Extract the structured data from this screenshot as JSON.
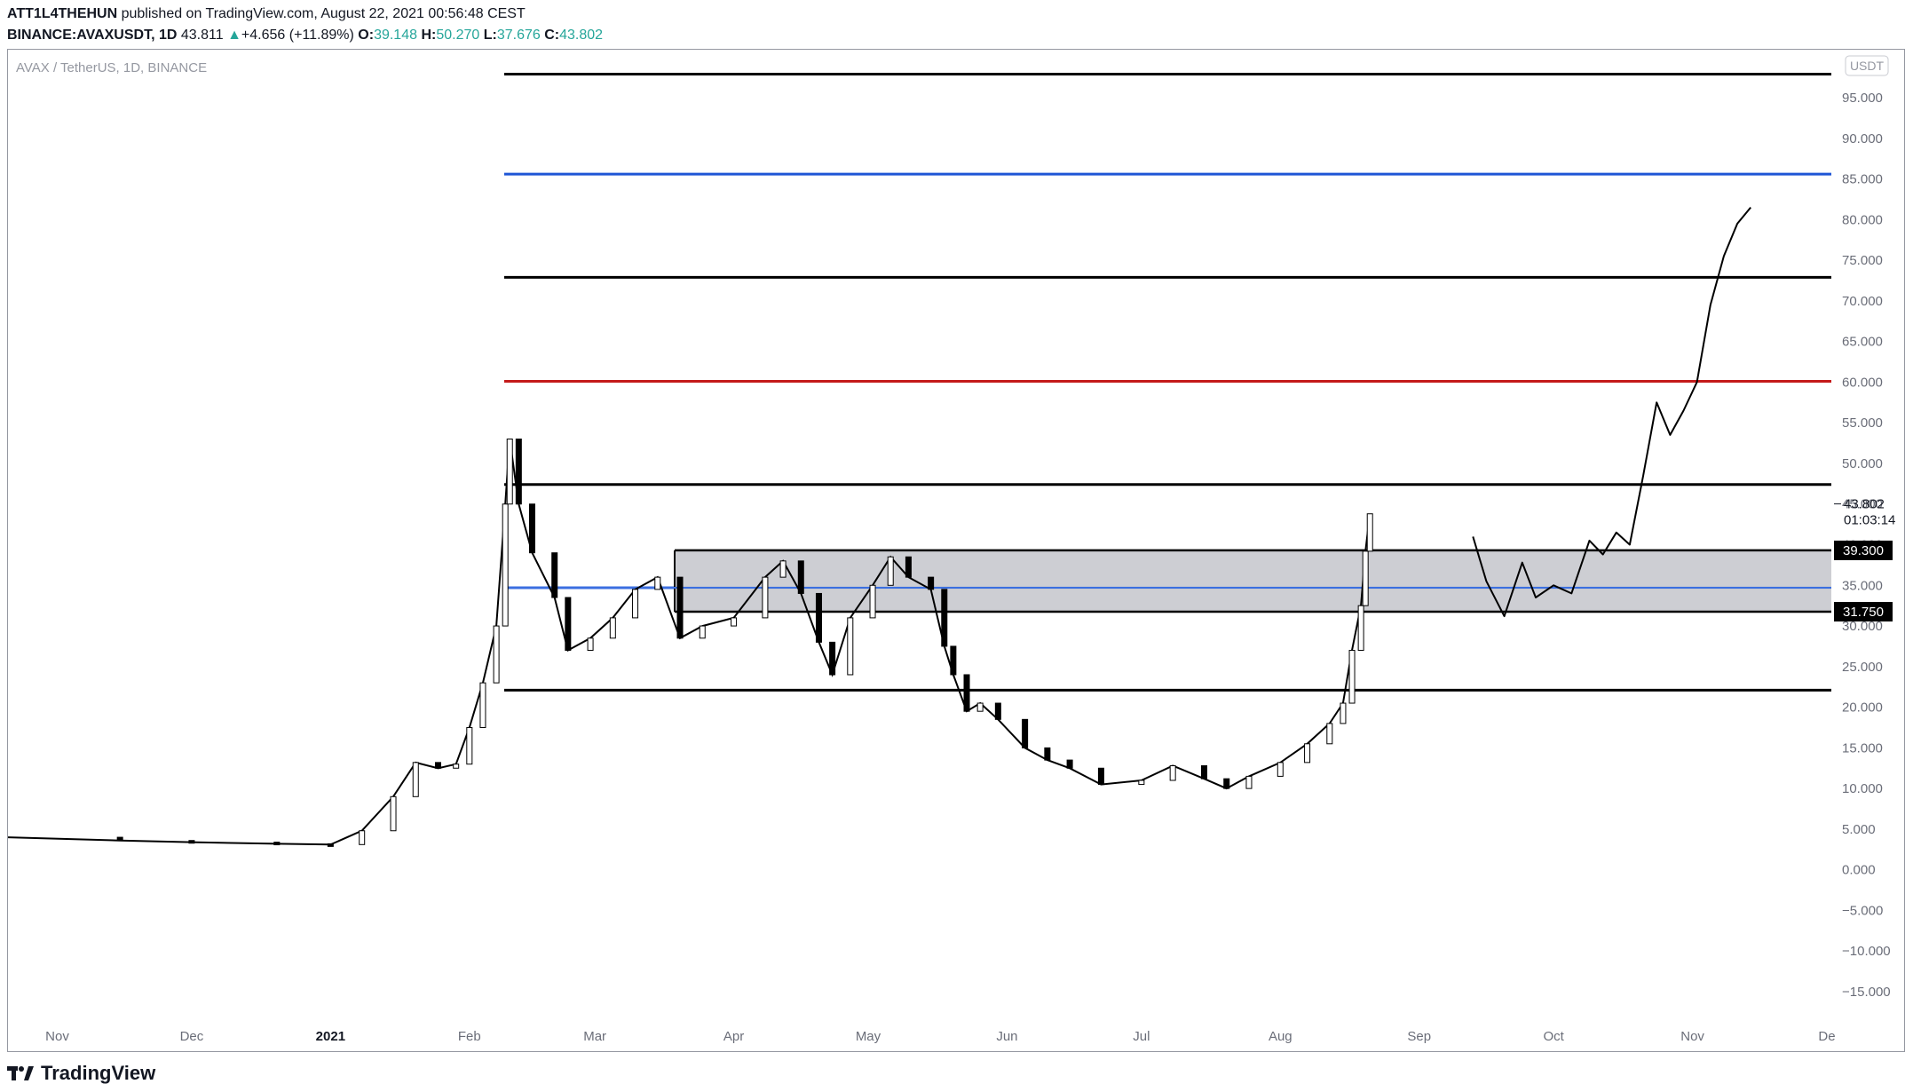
{
  "header": {
    "author": "ATT1L4THEHUN",
    "published": "published on TradingView.com, August 22, 2021 00:56:48 CEST",
    "symbol": "BINANCE:AVAXUSDT, 1D",
    "last": "43.811",
    "change": "+4.656 (+11.89%)",
    "o_label": "O:",
    "o": "39.148",
    "h_label": "H:",
    "h": "50.270",
    "l_label": "L:",
    "l": "37.676",
    "c_label": "C:",
    "c": "43.802"
  },
  "footer": {
    "brand": "TradingView"
  },
  "chart_data": {
    "type": "line",
    "title": "AVAX / TetherUS, 1D, BINANCE",
    "currency_badge": "USDT",
    "ylim": [
      -15,
      100
    ],
    "y_ticks": [
      -15,
      -10,
      -5,
      0,
      5,
      10,
      15,
      20,
      25,
      30,
      35,
      40,
      45,
      50,
      55,
      60,
      65,
      70,
      75,
      80,
      85,
      90,
      95
    ],
    "y_tick_labels": [
      "−15.000",
      "−10.000",
      "−5.000",
      "0.000",
      "5.000",
      "10.000",
      "15.000",
      "20.000",
      "25.000",
      "30.000",
      "35.000",
      "40.000",
      "45.000",
      "50.000",
      "55.000",
      "60.000",
      "65.000",
      "70.000",
      "75.000",
      "80.000",
      "85.000",
      "90.000",
      "95.000"
    ],
    "x_start": "2020-10-21",
    "x_end": "2021-12-01",
    "x_ticks": [
      {
        "date": "2020-11-01",
        "label": "Nov"
      },
      {
        "date": "2020-12-01",
        "label": "Dec"
      },
      {
        "date": "2021-01-01",
        "label": "2021"
      },
      {
        "date": "2021-02-01",
        "label": "Feb"
      },
      {
        "date": "2021-03-01",
        "label": "Mar"
      },
      {
        "date": "2021-04-01",
        "label": "Apr"
      },
      {
        "date": "2021-05-01",
        "label": "May"
      },
      {
        "date": "2021-06-01",
        "label": "Jun"
      },
      {
        "date": "2021-07-01",
        "label": "Jul"
      },
      {
        "date": "2021-08-01",
        "label": "Aug"
      },
      {
        "date": "2021-09-01",
        "label": "Sep"
      },
      {
        "date": "2021-10-01",
        "label": "Oct"
      },
      {
        "date": "2021-11-01",
        "label": "Nov"
      },
      {
        "date": "2021-12-01",
        "label": "De"
      }
    ],
    "price_series": {
      "name": "AVAXUSDT",
      "x": [
        "2020-10-21",
        "2020-11-15",
        "2020-12-01",
        "2020-12-20",
        "2021-01-01",
        "2021-01-08",
        "2021-01-15",
        "2021-01-20",
        "2021-01-25",
        "2021-01-29",
        "2021-02-01",
        "2021-02-04",
        "2021-02-07",
        "2021-02-09",
        "2021-02-10",
        "2021-02-12",
        "2021-02-15",
        "2021-02-20",
        "2021-02-23",
        "2021-02-28",
        "2021-03-05",
        "2021-03-10",
        "2021-03-15",
        "2021-03-20",
        "2021-03-25",
        "2021-04-01",
        "2021-04-08",
        "2021-04-12",
        "2021-04-16",
        "2021-04-20",
        "2021-04-23",
        "2021-04-27",
        "2021-05-02",
        "2021-05-06",
        "2021-05-10",
        "2021-05-15",
        "2021-05-18",
        "2021-05-20",
        "2021-05-23",
        "2021-05-26",
        "2021-05-30",
        "2021-06-05",
        "2021-06-10",
        "2021-06-15",
        "2021-06-22",
        "2021-07-01",
        "2021-07-08",
        "2021-07-15",
        "2021-07-20",
        "2021-07-25",
        "2021-08-01",
        "2021-08-07",
        "2021-08-12",
        "2021-08-15",
        "2021-08-17",
        "2021-08-19",
        "2021-08-20",
        "2021-08-21"
      ],
      "values": [
        4.0,
        3.6,
        3.4,
        3.2,
        3.1,
        4.8,
        9.0,
        13.2,
        12.5,
        13.0,
        17.5,
        23.0,
        30.0,
        45.0,
        53.0,
        45.0,
        39.0,
        33.5,
        27.0,
        28.5,
        31.0,
        34.5,
        36.0,
        28.5,
        30.0,
        31.0,
        36.0,
        38.0,
        34.0,
        28.0,
        24.0,
        31.0,
        35.0,
        38.5,
        36.0,
        34.5,
        27.5,
        24.0,
        19.5,
        20.5,
        18.5,
        15.0,
        13.5,
        12.5,
        10.5,
        11.0,
        12.8,
        11.2,
        10.0,
        11.5,
        13.2,
        15.5,
        18.0,
        20.5,
        27.0,
        32.5,
        39.2,
        43.8
      ]
    },
    "projection": {
      "name": "projection",
      "x": [
        "2021-09-13",
        "2021-09-16",
        "2021-09-20",
        "2021-09-24",
        "2021-09-27",
        "2021-10-01",
        "2021-10-05",
        "2021-10-09",
        "2021-10-12",
        "2021-10-15",
        "2021-10-18",
        "2021-10-21",
        "2021-10-24",
        "2021-10-27",
        "2021-10-30",
        "2021-11-02",
        "2021-11-05",
        "2021-11-08",
        "2021-11-11",
        "2021-11-14"
      ],
      "values": [
        41.0,
        35.5,
        31.2,
        37.8,
        33.5,
        35.0,
        34.0,
        40.5,
        38.8,
        41.5,
        40.0,
        48.5,
        57.5,
        53.5,
        56.5,
        60.0,
        69.5,
        75.5,
        79.5,
        81.5
      ]
    },
    "horizontal_levels": [
      {
        "price": 97.9,
        "color": "#000000"
      },
      {
        "price": 85.6,
        "color": "#1e55d6"
      },
      {
        "price": 72.9,
        "color": "#000000"
      },
      {
        "price": 60.1,
        "color": "#c41a1a"
      },
      {
        "price": 47.4,
        "color": "#000000"
      },
      {
        "price": 34.7,
        "color": "#3b6fe0"
      },
      {
        "price": 22.1,
        "color": "#000000"
      }
    ],
    "zone": {
      "top": 39.3,
      "bottom": 31.75,
      "top_label": "39.300",
      "bottom_label": "31.750",
      "fill": "#c8c9ce"
    },
    "last_price_label": "43.802",
    "countdown": "01:03:14",
    "grid": false
  }
}
